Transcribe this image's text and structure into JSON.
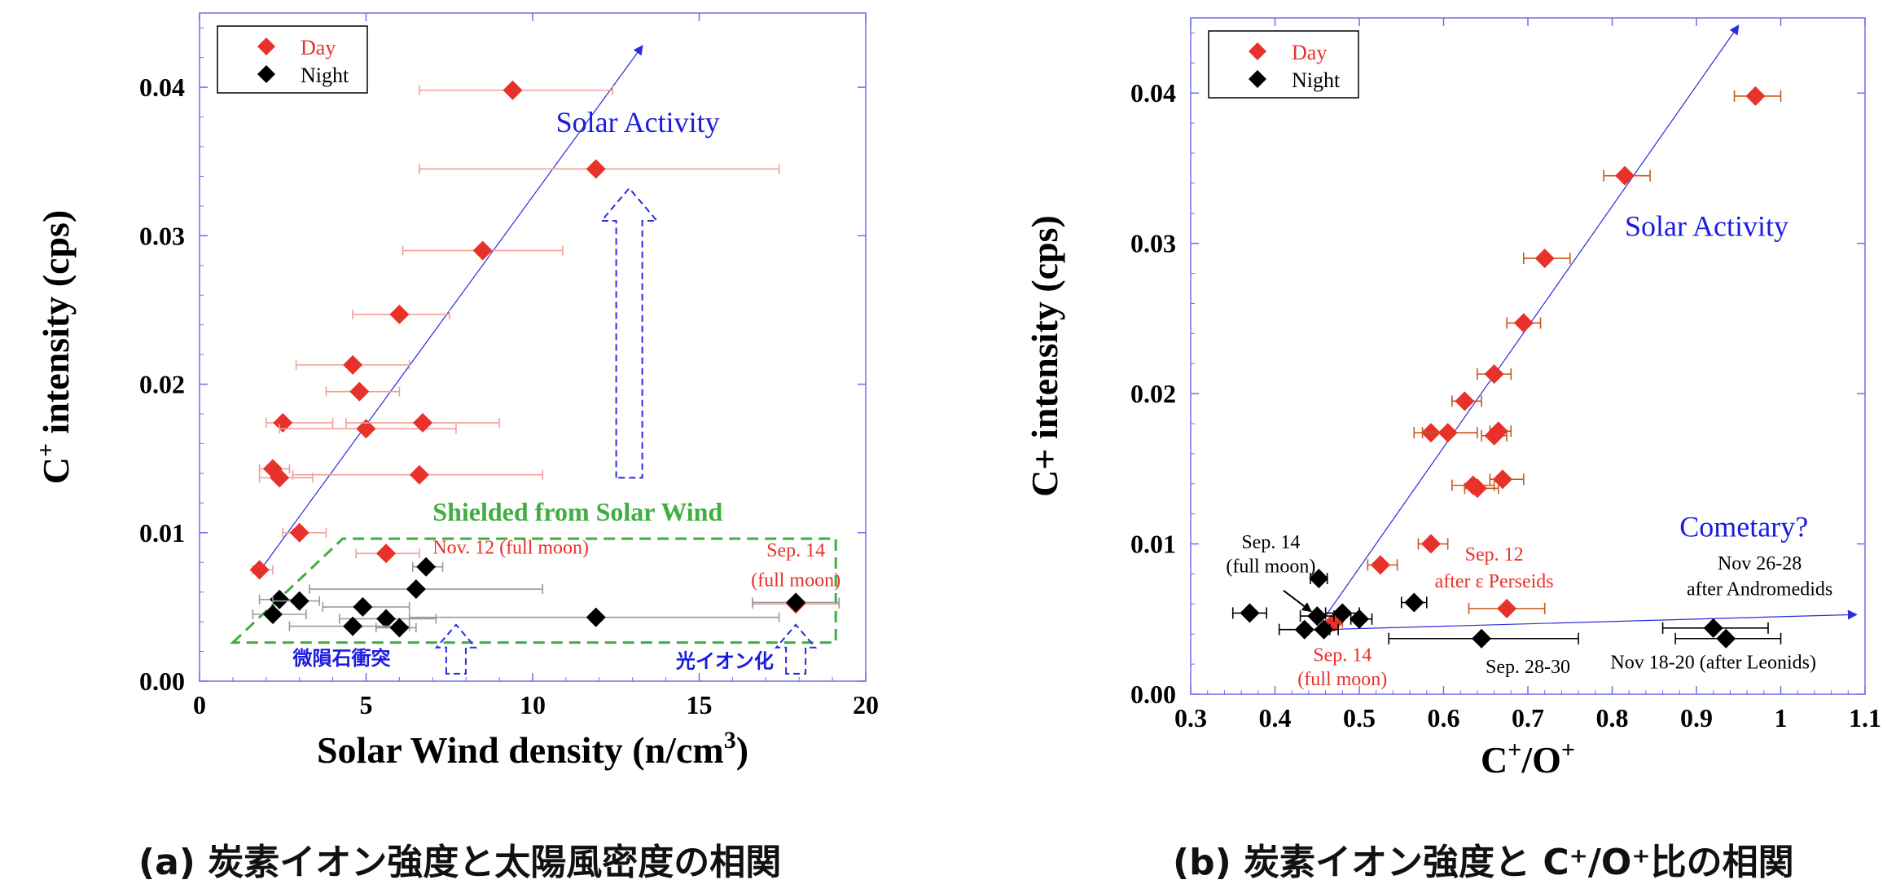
{
  "colors": {
    "day": "#e8312a",
    "night": "#000000",
    "axis": "#6e6ef0",
    "trend": "#2a2ae0",
    "shield": "#3fae3f",
    "text_red": "#e8312a",
    "text_blue": "#1b1be0"
  },
  "captions": {
    "a": "(a) 炭素イオン強度と太陽風密度の相関",
    "b": "(b) 炭素イオン強度と C⁺/O⁺比の相関"
  },
  "chart_data": [
    {
      "type": "scatter",
      "title": "",
      "xlabel_text": "Solar Wind density (n/cm",
      "xlabel_sup": "3",
      "xlabel_tail": ")",
      "ylabel_base": "C",
      "ylabel_sup": "+",
      "ylabel_tail": " intensity (cps)",
      "xlim": [
        0,
        20
      ],
      "ylim": [
        0,
        0.045
      ],
      "xticks": [
        0,
        5,
        10,
        15,
        20
      ],
      "xtick_labels": [
        "0",
        "5",
        "10",
        "15",
        "20"
      ],
      "yticks": [
        0,
        0.01,
        0.02,
        0.03,
        0.04
      ],
      "ytick_labels": [
        "0.00",
        "0.01",
        "0.02",
        "0.03",
        "0.04"
      ],
      "legend": {
        "position": "top-left",
        "entries": [
          "Day",
          "Night"
        ]
      },
      "series": [
        {
          "name": "Day",
          "points": [
            {
              "x": 9.4,
              "y": 0.0398,
              "xlo": 6.6,
              "xhi": 12.4
            },
            {
              "x": 11.9,
              "y": 0.0345,
              "xlo": 6.6,
              "xhi": 17.4
            },
            {
              "x": 8.5,
              "y": 0.029,
              "xlo": 6.1,
              "xhi": 10.9
            },
            {
              "x": 6.0,
              "y": 0.0247,
              "xlo": 4.6,
              "xhi": 7.5
            },
            {
              "x": 4.6,
              "y": 0.0213,
              "xlo": 2.9,
              "xhi": 6.3
            },
            {
              "x": 4.8,
              "y": 0.0195,
              "xlo": 3.8,
              "xhi": 6.0
            },
            {
              "x": 2.5,
              "y": 0.0174,
              "xlo": 2.0,
              "xhi": 4.0
            },
            {
              "x": 5.0,
              "y": 0.017,
              "xlo": 2.4,
              "xhi": 7.7
            },
            {
              "x": 6.7,
              "y": 0.0174,
              "xlo": 4.4,
              "xhi": 9.0
            },
            {
              "x": 2.2,
              "y": 0.0143,
              "xlo": 1.8,
              "xhi": 2.7
            },
            {
              "x": 2.4,
              "y": 0.0137,
              "xlo": 1.8,
              "xhi": 3.4
            },
            {
              "x": 6.6,
              "y": 0.0139,
              "xlo": 2.8,
              "xhi": 10.3
            },
            {
              "x": 3.0,
              "y": 0.01,
              "xlo": 2.5,
              "xhi": 3.8
            },
            {
              "x": 1.8,
              "y": 0.0075,
              "xlo": 1.6,
              "xhi": 2.2
            },
            {
              "x": 5.6,
              "y": 0.0086,
              "xlo": 4.7,
              "xhi": 6.6
            },
            {
              "x": 17.9,
              "y": 0.0052,
              "xlo": 16.6,
              "xhi": 19.2
            }
          ]
        },
        {
          "name": "Night",
          "points": [
            {
              "x": 6.8,
              "y": 0.0077,
              "xlo": 6.4,
              "xhi": 7.3
            },
            {
              "x": 6.5,
              "y": 0.0062,
              "xlo": 3.3,
              "xhi": 10.3
            },
            {
              "x": 2.4,
              "y": 0.0055,
              "xlo": 1.8,
              "xhi": 3.0
            },
            {
              "x": 3.0,
              "y": 0.0054,
              "xlo": 2.2,
              "xhi": 3.6
            },
            {
              "x": 4.9,
              "y": 0.005,
              "xlo": 3.7,
              "xhi": 6.3
            },
            {
              "x": 2.2,
              "y": 0.0045,
              "xlo": 1.6,
              "xhi": 3.2
            },
            {
              "x": 5.6,
              "y": 0.0042,
              "xlo": 4.2,
              "xhi": 7.1
            },
            {
              "x": 4.6,
              "y": 0.0037,
              "xlo": 2.7,
              "xhi": 6.3
            },
            {
              "x": 6.0,
              "y": 0.0036,
              "xlo": 5.3,
              "xhi": 6.5
            },
            {
              "x": 11.9,
              "y": 0.0043,
              "xlo": 6.3,
              "xhi": 17.4
            },
            {
              "x": 17.9,
              "y": 0.0053,
              "xlo": 16.6,
              "xhi": 19.2
            }
          ]
        }
      ],
      "trend": {
        "from": [
          1.8,
          0.0074
        ],
        "to": [
          13.3,
          0.0428
        ]
      },
      "annotations": [
        {
          "text": "Solar Activity",
          "x": 10.7,
          "y": 0.037,
          "color": "text_blue",
          "size": 36,
          "bold": false,
          "anchor": "start"
        },
        {
          "text": "Shielded from Solar Wind",
          "x": 7.0,
          "y": 0.0108,
          "color": "shield",
          "size": 32,
          "bold": true,
          "anchor": "start"
        },
        {
          "text": "Nov. 12 (full moon)",
          "x": 7.0,
          "y": 0.0086,
          "color": "text_red",
          "size": 24,
          "bold": false,
          "anchor": "start"
        },
        {
          "text": "Sep. 14",
          "x": 17.9,
          "y": 0.0084,
          "color": "text_red",
          "size": 24,
          "bold": false,
          "anchor": "middle"
        },
        {
          "text": "(full moon)",
          "x": 17.9,
          "y": 0.0064,
          "color": "text_red",
          "size": 24,
          "bold": false,
          "anchor": "middle"
        },
        {
          "text": "微隕石衝突",
          "x": 2.8,
          "y": 0.0011,
          "color": "text_blue",
          "size": 24,
          "bold": true,
          "anchor": "start"
        },
        {
          "text": "光イオン化",
          "x": 14.3,
          "y": 0.0009,
          "color": "text_blue",
          "size": 24,
          "bold": true,
          "anchor": "start"
        }
      ],
      "shield_region": [
        [
          1.0,
          0.0026
        ],
        [
          4.3,
          0.0096
        ],
        [
          19.1,
          0.0096
        ],
        [
          19.1,
          0.0026
        ]
      ],
      "hollow_arrows": [
        {
          "x": 12.9,
          "y_base": 0.0137,
          "y_tip": 0.0332
        },
        {
          "x": 7.7,
          "y_base": 0.0005,
          "y_tip": 0.0038
        },
        {
          "x": 17.9,
          "y_base": 0.0005,
          "y_tip": 0.0038
        }
      ]
    },
    {
      "type": "scatter",
      "title": "",
      "xlabel_base": "C",
      "xlabel_sup": "+",
      "xlabel_mid": "/O",
      "xlabel_sup2": "+",
      "ylabel_text": "C+ intensity (cps)",
      "xlim": [
        0.3,
        1.1
      ],
      "ylim": [
        0,
        0.045
      ],
      "xticks": [
        0.3,
        0.4,
        0.5,
        0.6,
        0.7,
        0.8,
        0.9,
        1.0,
        1.1
      ],
      "xtick_labels": [
        "0.3",
        "0.4",
        "0.5",
        "0.6",
        "0.7",
        "0.8",
        "0.9",
        "1",
        "1.1"
      ],
      "yticks": [
        0,
        0.01,
        0.02,
        0.03,
        0.04
      ],
      "ytick_labels": [
        "0.00",
        "0.01",
        "0.02",
        "0.03",
        "0.04"
      ],
      "legend": {
        "position": "top-left",
        "entries": [
          "Day",
          "Night"
        ]
      },
      "series": [
        {
          "name": "Day",
          "points": [
            {
              "x": 0.97,
              "y": 0.0398,
              "xlo": 0.945,
              "xhi": 1.0
            },
            {
              "x": 0.815,
              "y": 0.0345,
              "xlo": 0.79,
              "xhi": 0.845
            },
            {
              "x": 0.72,
              "y": 0.029,
              "xlo": 0.695,
              "xhi": 0.75
            },
            {
              "x": 0.695,
              "y": 0.0247,
              "xlo": 0.675,
              "xhi": 0.715
            },
            {
              "x": 0.66,
              "y": 0.0213,
              "xlo": 0.64,
              "xhi": 0.68
            },
            {
              "x": 0.625,
              "y": 0.0195,
              "xlo": 0.61,
              "xhi": 0.645
            },
            {
              "x": 0.585,
              "y": 0.0174,
              "xlo": 0.565,
              "xhi": 0.605
            },
            {
              "x": 0.605,
              "y": 0.0174,
              "xlo": 0.575,
              "xhi": 0.64
            },
            {
              "x": 0.665,
              "y": 0.0175,
              "xlo": 0.655,
              "xhi": 0.68
            },
            {
              "x": 0.66,
              "y": 0.0172,
              "xlo": 0.645,
              "xhi": 0.675
            },
            {
              "x": 0.67,
              "y": 0.0143,
              "xlo": 0.655,
              "xhi": 0.695
            },
            {
              "x": 0.635,
              "y": 0.0139,
              "xlo": 0.61,
              "xhi": 0.66
            },
            {
              "x": 0.64,
              "y": 0.0137,
              "xlo": 0.625,
              "xhi": 0.665
            },
            {
              "x": 0.585,
              "y": 0.01,
              "xlo": 0.57,
              "xhi": 0.605
            },
            {
              "x": 0.525,
              "y": 0.0086,
              "xlo": 0.51,
              "xhi": 0.545
            },
            {
              "x": 0.675,
              "y": 0.0057,
              "xlo": 0.63,
              "xhi": 0.72
            },
            {
              "x": 0.47,
              "y": 0.0048,
              "xlo": 0.46,
              "xhi": 0.48
            }
          ]
        },
        {
          "name": "Night",
          "points": [
            {
              "x": 0.452,
              "y": 0.0077,
              "xlo": 0.442,
              "xhi": 0.462
            },
            {
              "x": 0.37,
              "y": 0.0054,
              "xlo": 0.35,
              "xhi": 0.39
            },
            {
              "x": 0.45,
              "y": 0.0052,
              "xlo": 0.43,
              "xhi": 0.47
            },
            {
              "x": 0.48,
              "y": 0.0054,
              "xlo": 0.46,
              "xhi": 0.5
            },
            {
              "x": 0.5,
              "y": 0.005,
              "xlo": 0.49,
              "xhi": 0.515
            },
            {
              "x": 0.435,
              "y": 0.0043,
              "xlo": 0.405,
              "xhi": 0.465
            },
            {
              "x": 0.458,
              "y": 0.0043,
              "xlo": 0.44,
              "xhi": 0.475
            },
            {
              "x": 0.565,
              "y": 0.0061,
              "xlo": 0.55,
              "xhi": 0.58
            },
            {
              "x": 0.645,
              "y": 0.0037,
              "xlo": 0.535,
              "xhi": 0.76
            },
            {
              "x": 0.92,
              "y": 0.0044,
              "xlo": 0.86,
              "xhi": 0.985
            },
            {
              "x": 0.935,
              "y": 0.0037,
              "xlo": 0.875,
              "xhi": 1.0
            }
          ]
        }
      ],
      "trend": {
        "from": [
          0.46,
          0.0052
        ],
        "to": [
          0.95,
          0.0445
        ]
      },
      "trend2": {
        "from": [
          0.46,
          0.0043
        ],
        "to": [
          1.09,
          0.0053
        ]
      },
      "annotations": [
        {
          "text": "Solar Activity",
          "x": 0.815,
          "y": 0.0305,
          "color": "text_blue",
          "size": 36,
          "bold": false,
          "anchor": "start"
        },
        {
          "text": "Cometary?",
          "x": 0.88,
          "y": 0.0105,
          "color": "text_blue",
          "size": 36,
          "bold": false,
          "anchor": "start"
        },
        {
          "text": "Sep. 12",
          "x": 0.66,
          "y": 0.0089,
          "color": "text_red",
          "size": 24,
          "bold": false,
          "anchor": "middle"
        },
        {
          "text": "after ε Perseids",
          "x": 0.66,
          "y": 0.0071,
          "color": "text_red",
          "size": 24,
          "bold": false,
          "anchor": "middle"
        },
        {
          "text": "Sep. 14",
          "x": 0.395,
          "y": 0.0097,
          "color": "night",
          "size": 24,
          "bold": false,
          "anchor": "middle"
        },
        {
          "text": "(full moon)",
          "x": 0.395,
          "y": 0.0081,
          "color": "night",
          "size": 24,
          "bold": false,
          "anchor": "middle"
        },
        {
          "text": "Sep. 14",
          "x": 0.48,
          "y": 0.0022,
          "color": "text_red",
          "size": 24,
          "bold": false,
          "anchor": "middle"
        },
        {
          "text": "(full moon)",
          "x": 0.48,
          "y": 0.0006,
          "color": "text_red",
          "size": 24,
          "bold": false,
          "anchor": "middle"
        },
        {
          "text": "Sep. 28-30",
          "x": 0.7,
          "y": 0.0014,
          "color": "night",
          "size": 24,
          "bold": false,
          "anchor": "middle"
        },
        {
          "text": "Nov 26-28",
          "x": 0.975,
          "y": 0.0083,
          "color": "night",
          "size": 24,
          "bold": false,
          "anchor": "middle"
        },
        {
          "text": "after Andromedids",
          "x": 0.975,
          "y": 0.0066,
          "color": "night",
          "size": 24,
          "bold": false,
          "anchor": "middle"
        },
        {
          "text": "Nov 18-20 (after Leonids)",
          "x": 0.92,
          "y": 0.0017,
          "color": "night",
          "size": 24,
          "bold": false,
          "anchor": "middle"
        }
      ],
      "pointer_arrow": {
        "from": [
          0.41,
          0.0069
        ],
        "to": [
          0.443,
          0.0055
        ]
      }
    }
  ]
}
